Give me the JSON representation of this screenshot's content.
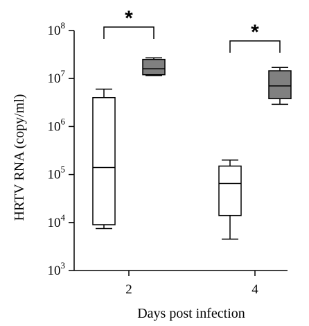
{
  "chart_data": {
    "type": "box",
    "xlabel": "Days post infection",
    "ylabel": "HRTV RNA (copy/ml)",
    "y_scale": "log",
    "ylim": [
      1000,
      100000000
    ],
    "y_ticks": [
      {
        "value": 1000,
        "base": "10",
        "exp": "3"
      },
      {
        "value": 10000,
        "base": "10",
        "exp": "4"
      },
      {
        "value": 100000,
        "base": "10",
        "exp": "5"
      },
      {
        "value": 1000000,
        "base": "10",
        "exp": "6"
      },
      {
        "value": 10000000,
        "base": "10",
        "exp": "7"
      },
      {
        "value": 100000000,
        "base": "10",
        "exp": "8"
      }
    ],
    "categories": [
      "2",
      "4"
    ],
    "series": [
      {
        "fill": "#ffffff",
        "boxes": [
          {
            "min": 7500,
            "q1": 9000,
            "median": 140000,
            "q3": 4000000,
            "max": 6000000
          },
          {
            "min": 4500,
            "q1": 14000,
            "median": 65000,
            "q3": 150000,
            "max": 200000
          }
        ]
      },
      {
        "fill": "#808080",
        "boxes": [
          {
            "min": 11500000,
            "q1": 12000000,
            "median": 16000000,
            "q3": 25000000,
            "max": 27000000
          },
          {
            "min": 2900000,
            "q1": 3800000,
            "median": 7000000,
            "q3": 14500000,
            "max": 17000000
          }
        ]
      }
    ],
    "significance": [
      {
        "category": "2",
        "label": "*"
      },
      {
        "category": "4",
        "label": "*"
      }
    ]
  }
}
